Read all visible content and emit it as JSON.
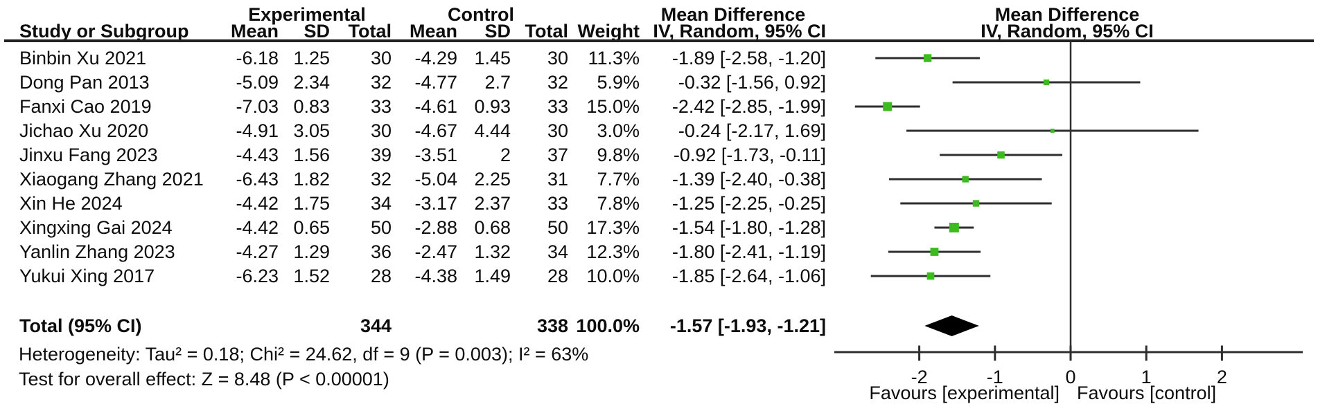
{
  "chart_data": {
    "type": "forest",
    "effect_measure": "Mean Difference, IV, Random, 95% CI",
    "title_columns": {
      "group_experimental": "Experimental",
      "group_control": "Control",
      "md_table": "Mean Difference",
      "md_plot": "Mean Difference",
      "ci_table": "IV, Random, 95% CI",
      "ci_plot": "IV, Random, 95% CI"
    },
    "columns": {
      "study": "Study or Subgroup",
      "mean": "Mean",
      "sd": "SD",
      "total": "Total",
      "weight": "Weight"
    },
    "studies": [
      {
        "name": "Binbin Xu 2021",
        "mean_e": "-6.18",
        "sd_e": "1.25",
        "total_e": "30",
        "mean_c": "-4.29",
        "sd_c": "1.45",
        "total_c": "30",
        "weight": "11.3%",
        "md_ci": "-1.89 [-2.58, -1.20]",
        "est": -1.89,
        "lo": -2.58,
        "hi": -1.2,
        "weight_pct": 11.3
      },
      {
        "name": "Dong Pan 2013",
        "mean_e": "-5.09",
        "sd_e": "2.34",
        "total_e": "32",
        "mean_c": "-4.77",
        "sd_c": "2.7",
        "total_c": "32",
        "weight": "5.9%",
        "md_ci": "-0.32 [-1.56, 0.92]",
        "est": -0.32,
        "lo": -1.56,
        "hi": 0.92,
        "weight_pct": 5.9
      },
      {
        "name": "Fanxi Cao 2019",
        "mean_e": "-7.03",
        "sd_e": "0.83",
        "total_e": "33",
        "mean_c": "-4.61",
        "sd_c": "0.93",
        "total_c": "33",
        "weight": "15.0%",
        "md_ci": "-2.42 [-2.85, -1.99]",
        "est": -2.42,
        "lo": -2.85,
        "hi": -1.99,
        "weight_pct": 15.0
      },
      {
        "name": "Jichao Xu 2020",
        "mean_e": "-4.91",
        "sd_e": "3.05",
        "total_e": "30",
        "mean_c": "-4.67",
        "sd_c": "4.44",
        "total_c": "30",
        "weight": "3.0%",
        "md_ci": "-0.24 [-2.17, 1.69]",
        "est": -0.24,
        "lo": -2.17,
        "hi": 1.69,
        "weight_pct": 3.0
      },
      {
        "name": "Jinxu Fang 2023",
        "mean_e": "-4.43",
        "sd_e": "1.56",
        "total_e": "39",
        "mean_c": "-3.51",
        "sd_c": "2",
        "total_c": "37",
        "weight": "9.8%",
        "md_ci": "-0.92 [-1.73, -0.11]",
        "est": -0.92,
        "lo": -1.73,
        "hi": -0.11,
        "weight_pct": 9.8
      },
      {
        "name": "Xiaogang Zhang 2021",
        "mean_e": "-6.43",
        "sd_e": "1.82",
        "total_e": "32",
        "mean_c": "-5.04",
        "sd_c": "2.25",
        "total_c": "31",
        "weight": "7.7%",
        "md_ci": "-1.39 [-2.40, -0.38]",
        "est": -1.39,
        "lo": -2.4,
        "hi": -0.38,
        "weight_pct": 7.7
      },
      {
        "name": "Xin He 2024",
        "mean_e": "-4.42",
        "sd_e": "1.75",
        "total_e": "34",
        "mean_c": "-3.17",
        "sd_c": "2.37",
        "total_c": "33",
        "weight": "7.8%",
        "md_ci": "-1.25 [-2.25, -0.25]",
        "est": -1.25,
        "lo": -2.25,
        "hi": -0.25,
        "weight_pct": 7.8
      },
      {
        "name": "Xingxing Gai 2024",
        "mean_e": "-4.42",
        "sd_e": "0.65",
        "total_e": "50",
        "mean_c": "-2.88",
        "sd_c": "0.68",
        "total_c": "50",
        "weight": "17.3%",
        "md_ci": "-1.54 [-1.80, -1.28]",
        "est": -1.54,
        "lo": -1.8,
        "hi": -1.28,
        "weight_pct": 17.3
      },
      {
        "name": "Yanlin Zhang 2023",
        "mean_e": "-4.27",
        "sd_e": "1.29",
        "total_e": "36",
        "mean_c": "-2.47",
        "sd_c": "1.32",
        "total_c": "34",
        "weight": "12.3%",
        "md_ci": "-1.80 [-2.41, -1.19]",
        "est": -1.8,
        "lo": -2.41,
        "hi": -1.19,
        "weight_pct": 12.3
      },
      {
        "name": "Yukui Xing 2017",
        "mean_e": "-6.23",
        "sd_e": "1.52",
        "total_e": "28",
        "mean_c": "-4.38",
        "sd_c": "1.49",
        "total_c": "28",
        "weight": "10.0%",
        "md_ci": "-1.85 [-2.64, -1.06]",
        "est": -1.85,
        "lo": -2.64,
        "hi": -1.06,
        "weight_pct": 10.0
      }
    ],
    "total": {
      "label": "Total (95% CI)",
      "total_e": "344",
      "total_c": "338",
      "weight": "100.0%",
      "md_ci": "-1.57 [-1.93, -1.21]",
      "est": -1.57,
      "lo": -1.93,
      "hi": -1.21
    },
    "heterogeneity": "Heterogeneity: Tau² = 0.18; Chi² = 24.62, df = 9 (P = 0.003); I² = 63%",
    "overall_effect": "Test for overall effect: Z = 8.48 (P < 0.00001)",
    "axis": {
      "tick_values": [
        -2,
        -1,
        0,
        1,
        2
      ],
      "tick_labels": [
        "-2",
        "-1",
        "0",
        "1",
        "2"
      ],
      "range": [
        -3.12,
        3.07
      ],
      "favours_left": "Favours [experimental]",
      "favours_right": "Favours [control]"
    },
    "colors": {
      "square_green": "#3CBB1F",
      "line": "#2e2e2e",
      "diamond": "#000000",
      "text": "#0d0d0d"
    }
  }
}
